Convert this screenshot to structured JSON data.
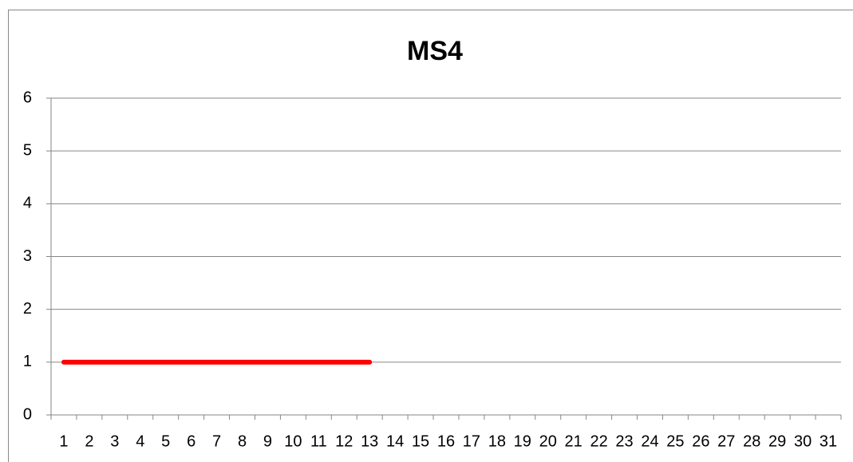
{
  "chart_data": {
    "type": "line",
    "title": "MS4",
    "categories": [
      1,
      2,
      3,
      4,
      5,
      6,
      7,
      8,
      9,
      10,
      11,
      12,
      13,
      14,
      15,
      16,
      17,
      18,
      19,
      20,
      21,
      22,
      23,
      24,
      25,
      26,
      27,
      28,
      29,
      30,
      31
    ],
    "series": [
      {
        "name": "MS4",
        "color": "#ff0000",
        "values": [
          1,
          1,
          1,
          1,
          1,
          1,
          1,
          1,
          1,
          1,
          1,
          1,
          1,
          null,
          null,
          null,
          null,
          null,
          null,
          null,
          null,
          null,
          null,
          null,
          null,
          null,
          null,
          null,
          null,
          null,
          null
        ]
      }
    ],
    "ylim": [
      0,
      6
    ],
    "yticks": [
      0,
      1,
      2,
      3,
      4,
      5,
      6
    ],
    "grid": true
  }
}
